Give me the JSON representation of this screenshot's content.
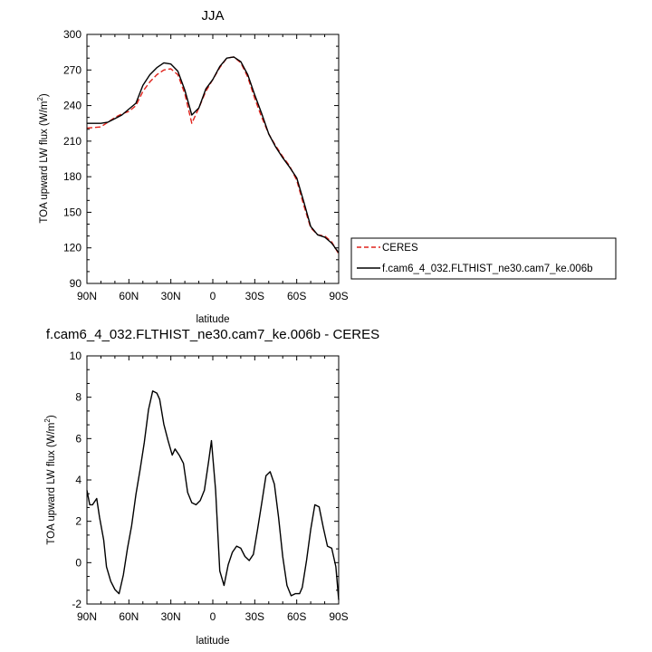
{
  "chart_data": [
    {
      "type": "line",
      "title": "JJA",
      "xlabel": "latitude",
      "ylabel": "TOA upward LW flux (W/m²)",
      "ylabel_main": "TOA upward LW flux (W/m",
      "ylabel_sup": "2",
      "ylabel_close": ")",
      "xlim": [
        90,
        -90
      ],
      "ylim": [
        90,
        300
      ],
      "xticks": [
        90,
        60,
        30,
        0,
        -30,
        -60,
        -90
      ],
      "xtick_labels": [
        "90N",
        "60N",
        "30N",
        "0",
        "30S",
        "60S",
        "90S"
      ],
      "yticks": [
        90,
        120,
        150,
        180,
        210,
        240,
        270,
        300
      ],
      "ytick_labels": [
        "90",
        "120",
        "150",
        "180",
        "210",
        "240",
        "270",
        "300"
      ],
      "legend_position": "right, outside plot",
      "series": [
        {
          "name": "CERES",
          "color": "#e0221b",
          "dash": "dashed",
          "x": [
            90,
            80,
            75,
            70,
            65,
            60,
            55,
            50,
            45,
            40,
            35,
            30,
            25,
            20,
            15,
            10,
            5,
            0,
            -5,
            -10,
            -15,
            -20,
            -25,
            -30,
            -35,
            -40,
            -45,
            -50,
            -55,
            -60,
            -65,
            -70,
            -75,
            -80,
            -85,
            -90
          ],
          "y": [
            221,
            222,
            226,
            230,
            233,
            235,
            240,
            252,
            260,
            266,
            270,
            271,
            266,
            250,
            225,
            238,
            252,
            262,
            272,
            280,
            281,
            276,
            264,
            246,
            230,
            216,
            206,
            197,
            189,
            177,
            156,
            137,
            131,
            130,
            125,
            115
          ]
        },
        {
          "name": "f.cam6_4_032.FLTHIST_ne30.cam7_ke.006b",
          "color": "#000000",
          "dash": "solid",
          "x": [
            90,
            80,
            75,
            70,
            65,
            60,
            55,
            50,
            45,
            40,
            35,
            30,
            25,
            20,
            15,
            10,
            5,
            0,
            -5,
            -10,
            -15,
            -20,
            -25,
            -30,
            -35,
            -40,
            -45,
            -50,
            -55,
            -60,
            -65,
            -70,
            -75,
            -80,
            -85,
            -90
          ],
          "y": [
            225,
            225,
            226,
            229,
            232,
            237,
            242,
            257,
            266,
            272,
            276,
            275,
            269,
            253,
            232,
            238,
            254,
            262,
            273,
            280,
            281,
            277,
            266,
            249,
            233,
            216,
            205,
            196,
            188,
            179,
            159,
            138,
            131,
            129,
            124,
            116
          ]
        }
      ]
    },
    {
      "type": "line",
      "title": "f.cam6_4_032.FLTHIST_ne30.cam7_ke.006b - CERES",
      "xlabel": "latitude",
      "ylabel": "TOA upward LW flux (W/m²)",
      "ylabel_main": "TOA upward LW flux (W/m",
      "ylabel_sup": "2",
      "ylabel_close": ")",
      "xlim": [
        90,
        -90
      ],
      "ylim": [
        -2,
        10
      ],
      "xticks": [
        90,
        60,
        30,
        0,
        -30,
        -60,
        -90
      ],
      "xtick_labels": [
        "90N",
        "60N",
        "30N",
        "0",
        "30S",
        "60S",
        "90S"
      ],
      "yticks": [
        -2,
        0,
        2,
        4,
        6,
        8,
        10
      ],
      "ytick_labels": [
        "-2",
        "0",
        "2",
        "4",
        "6",
        "8",
        "10"
      ],
      "series": [
        {
          "color": "#000000",
          "x": [
            90,
            88,
            86,
            83,
            81,
            78,
            76,
            73,
            70,
            67,
            64,
            61,
            58,
            55,
            52,
            49,
            46,
            43,
            40,
            38,
            35,
            32,
            29,
            27,
            24,
            21,
            18,
            15,
            12,
            9,
            6,
            3,
            1,
            -2,
            -5,
            -8,
            -11,
            -14,
            -17,
            -20,
            -23,
            -26,
            -29,
            -32,
            -35,
            -38,
            -41,
            -44,
            -47,
            -50,
            -53,
            -56,
            -59,
            -62,
            -64,
            -67,
            -70,
            -73,
            -76,
            -79,
            -82,
            -85,
            -88,
            -90
          ],
          "y": [
            3.5,
            2.8,
            2.8,
            3.1,
            2.2,
            1.1,
            -0.2,
            -0.9,
            -1.3,
            -1.5,
            -0.6,
            0.7,
            1.8,
            3.3,
            4.5,
            5.8,
            7.4,
            8.3,
            8.2,
            7.9,
            6.7,
            5.9,
            5.2,
            5.5,
            5.2,
            4.8,
            3.4,
            2.9,
            2.8,
            3.0,
            3.5,
            4.9,
            5.9,
            3.5,
            -0.4,
            -1.1,
            -0.1,
            0.5,
            0.8,
            0.7,
            0.3,
            0.1,
            0.4,
            1.6,
            2.9,
            4.2,
            4.4,
            3.8,
            2.2,
            0.3,
            -1.1,
            -1.6,
            -1.5,
            -1.5,
            -1.2,
            0.1,
            1.6,
            2.8,
            2.7,
            1.7,
            0.8,
            0.7,
            -0.2,
            -1.8
          ]
        }
      ]
    }
  ]
}
